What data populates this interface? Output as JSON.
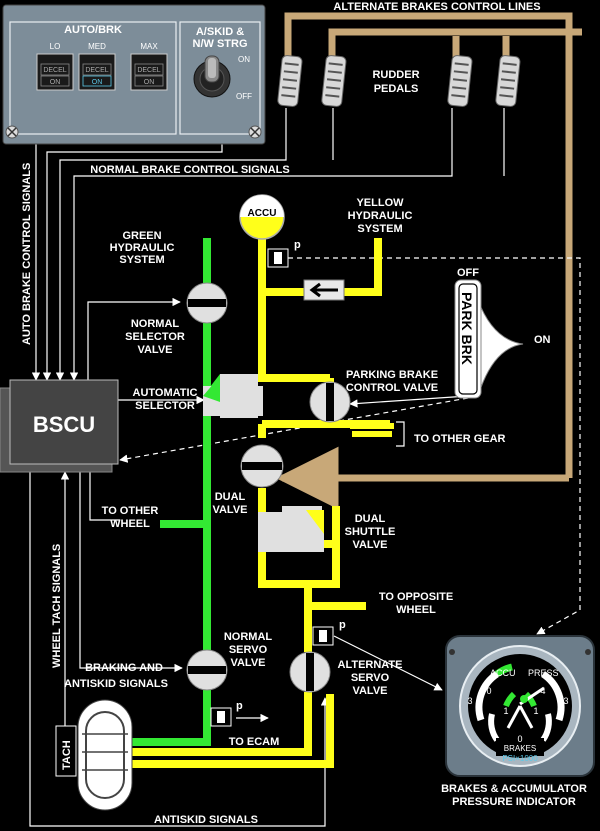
{
  "colors": {
    "green_hyd": "#33e833",
    "yellow_hyd": "#ffff1a",
    "alternate_line": "#c8a878",
    "panel": "#7d8d99",
    "bscu": "#4a4a4a"
  },
  "labels": {
    "alt_brakes_lines": "ALTERNATE BRAKES CONTROL LINES",
    "rudder_pedals": [
      "RUDDER",
      "PEDALS"
    ],
    "normal_brake_signals": "NORMAL BRAKE CONTROL SIGNALS",
    "auto_brake_signals": "AUTO BRAKE CONTROL SIGNALS",
    "green_hyd": [
      "GREEN",
      "HYDRAULIC",
      "SYSTEM"
    ],
    "yellow_hyd": [
      "YELLOW",
      "HYDRAULIC",
      "SYSTEM"
    ],
    "accu": "ACCU",
    "pressure_p": "p",
    "normal_selector": [
      "NORMAL",
      "SELECTOR",
      "VALVE"
    ],
    "automatic_selector": [
      "AUTOMATIC",
      "SELECTOR"
    ],
    "parking_brake_valve": [
      "PARKING BRAKE",
      "CONTROL VALVE"
    ],
    "to_other_gear": "TO OTHER GEAR",
    "bscu": "BSCU",
    "to_other_wheel": [
      "TO OTHER",
      "WHEEL"
    ],
    "dual_valve": [
      "DUAL",
      "VALVE"
    ],
    "dual_shuttle": [
      "DUAL",
      "SHUTTLE",
      "VALVE"
    ],
    "to_opposite_wheel": [
      "TO OPPOSITE",
      "WHEEL"
    ],
    "wheel_tach_signals": "WHEEL TACH SIGNALS",
    "normal_servo": [
      "NORMAL",
      "SERVO",
      "VALVE"
    ],
    "alternate_servo": [
      "ALTERNATE",
      "SERVO",
      "VALVE"
    ],
    "braking_antiskid": [
      "BRAKING AND",
      "ANTISKID SIGNALS"
    ],
    "to_ecam": "TO ECAM",
    "tach": "TACH",
    "antiskid_signals": "ANTISKID SIGNALS",
    "indicator_caption": [
      "BRAKES & ACCUMULATOR",
      "PRESSURE INDICATOR"
    ]
  },
  "autobrk_panel": {
    "title": "AUTO/BRK",
    "buttons": [
      {
        "label": "LO",
        "top": "DECEL",
        "bottom": "ON",
        "lit": false
      },
      {
        "label": "MED",
        "top": "DECEL",
        "bottom": "ON",
        "lit": true
      },
      {
        "label": "MAX",
        "top": "DECEL",
        "bottom": "ON",
        "lit": false
      }
    ],
    "askid_title": [
      "A/SKID &",
      "N/W STRG"
    ],
    "switch_on": "ON",
    "switch_off": "OFF"
  },
  "park_brk": {
    "label": "PARK BRK",
    "off": "OFF",
    "on": "ON"
  },
  "gauge": {
    "accu": "ACCU",
    "press": "PRESS",
    "brakes": "BRAKES",
    "units": "PSI×1000",
    "scale": [
      "0",
      "4",
      "3",
      "1",
      "1",
      "3",
      "0"
    ]
  }
}
